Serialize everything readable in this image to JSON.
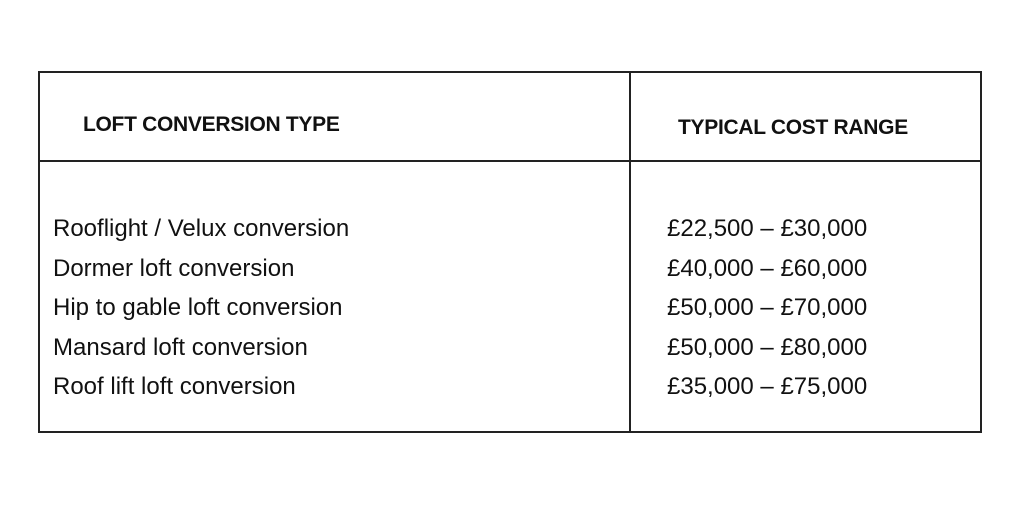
{
  "table": {
    "headers": [
      "LOFT CONVERSION TYPE",
      "TYPICAL COST RANGE"
    ],
    "rows": [
      {
        "type": "Rooflight / Velux conversion",
        "cost": "£22,500 – £30,000"
      },
      {
        "type": "Dormer loft conversion",
        "cost": "£40,000 – £60,000"
      },
      {
        "type": "Hip to gable loft conversion",
        "cost": "£50,000 – £70,000"
      },
      {
        "type": "Mansard loft conversion",
        "cost": "£50,000 – £80,000"
      },
      {
        "type": "Roof lift loft conversion",
        "cost": "£35,000 – £75,000"
      }
    ]
  }
}
